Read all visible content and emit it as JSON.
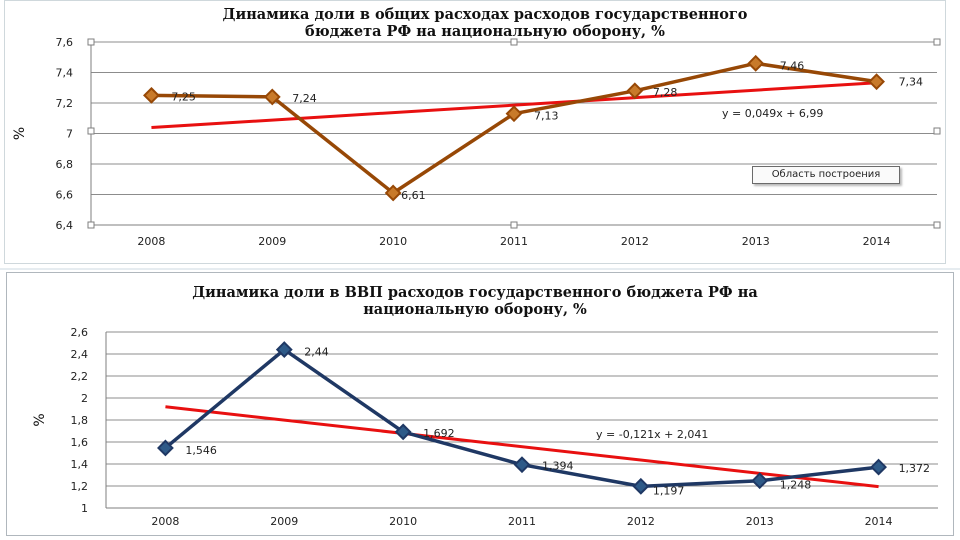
{
  "chart_data": [
    {
      "type": "line",
      "title": "Динамика доли в общих расходах расходов государственного\nбюджета РФ на национальную оборону, %",
      "ylabel": "%",
      "xlabel": "",
      "categories": [
        "2008",
        "2009",
        "2010",
        "2011",
        "2012",
        "2013",
        "2014"
      ],
      "yticks": [
        "7,6",
        "7,4",
        "7,2",
        "7",
        "6,8",
        "6,6",
        "6,4"
      ],
      "ylim": [
        6.4,
        7.6
      ],
      "series": [
        {
          "name": "",
          "values": [
            7.25,
            7.24,
            6.61,
            7.13,
            7.28,
            7.46,
            7.34
          ],
          "labels": [
            "7,25",
            "7,24",
            "6,61",
            "7,13",
            "7,28",
            "7,46",
            "7,34"
          ]
        }
      ],
      "trendline": {
        "type": "linear",
        "equation": "y = 0,049x + 6,99",
        "slope": 0.049,
        "intercept": 6.99
      },
      "grid": true,
      "legend": "none",
      "tooltip": "Область построения",
      "colors": {
        "line": "#974806",
        "marker": "#c87a2a",
        "trend": "#e81010"
      }
    },
    {
      "type": "line",
      "title": "Динамика доли в ВВП  расходов государственного бюджета РФ на\nнациональную  оборону, %",
      "ylabel": "%",
      "xlabel": "",
      "categories": [
        "2008",
        "2009",
        "2010",
        "2011",
        "2012",
        "2013",
        "2014"
      ],
      "yticks": [
        "2,6",
        "2,4",
        "2,2",
        "2",
        "1,8",
        "1,6",
        "1,4",
        "1,2",
        "1"
      ],
      "ylim": [
        1,
        2.6
      ],
      "series": [
        {
          "name": "",
          "values": [
            1.546,
            2.44,
            1.692,
            1.394,
            1.197,
            1.248,
            1.372
          ],
          "labels": [
            "1,546",
            "2,44",
            "1,692",
            "1,394",
            "1,197",
            "1,248",
            "1,372"
          ]
        }
      ],
      "trendline": {
        "type": "linear",
        "equation": "y = -0,121x + 2,041",
        "slope": -0.121,
        "intercept": 2.041
      },
      "grid": true,
      "legend": "none",
      "colors": {
        "line": "#1f3864",
        "marker": "#2e5a88",
        "trend": "#e81010"
      }
    }
  ]
}
